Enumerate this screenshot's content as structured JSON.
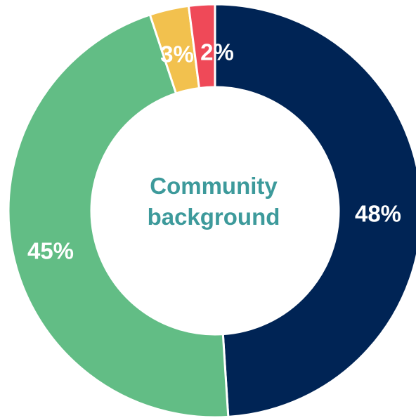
{
  "chart_data": {
    "type": "pie",
    "title": "Community background",
    "title_lines": [
      "Community",
      "background"
    ],
    "title_color": "#3d9a9b",
    "donut": true,
    "slices": [
      {
        "label": "48%",
        "value": 48,
        "color": "#002455"
      },
      {
        "label": "45%",
        "value": 45,
        "color": "#62bd85"
      },
      {
        "label": "3%",
        "value": 3,
        "color": "#f2c14e"
      },
      {
        "label": "2%",
        "value": 2,
        "color": "#ef4958"
      }
    ]
  }
}
